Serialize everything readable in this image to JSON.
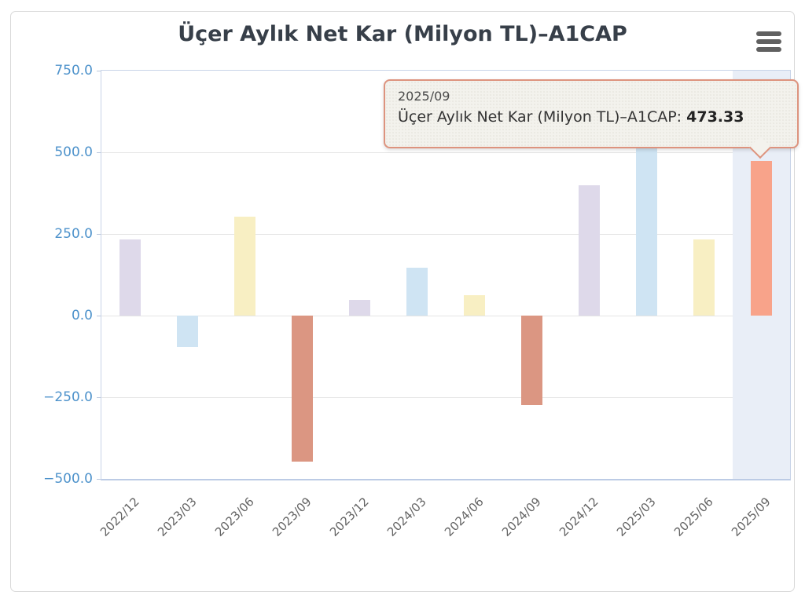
{
  "card": {
    "title": "Üçer Aylık Net Kar (Milyon TL)–A1CAP"
  },
  "tooltip": {
    "label": "2025/09",
    "series_label": "Üçer Aylık Net Kar (Milyon TL)–A1CAP:",
    "value": "473.33",
    "border_color": "#dd937e",
    "background": "#f3f2ed"
  },
  "chart_data": {
    "type": "bar",
    "title": "Üçer Aylık Net Kar (Milyon TL)–A1CAP",
    "categories": [
      "2022/12",
      "2023/03",
      "2023/06",
      "2023/09",
      "2023/12",
      "2024/03",
      "2024/06",
      "2024/09",
      "2024/12",
      "2025/03",
      "2025/06",
      "2025/09"
    ],
    "values": [
      234,
      -96,
      304,
      -447,
      47,
      146,
      63,
      -274,
      400,
      570,
      233,
      473.33
    ],
    "xlabel": "",
    "ylabel": "",
    "ylim": [
      -500,
      750
    ],
    "yticks": [
      750,
      500,
      250,
      0,
      -250,
      -500
    ],
    "ytick_labels": [
      "750.0",
      "500.0",
      "250.0",
      "0.0",
      "−250.0",
      "−500.0"
    ],
    "grid": true,
    "legend": false,
    "highlighted_category": "2025/09",
    "highlighted_value_label": "473.33",
    "bar_colors_cycle": [
      "#ded9ea",
      "#cfe4f3",
      "#f8efc3",
      "#db9682"
    ],
    "highlight_bar_color": "#f8a38a",
    "highlight_band_color": "#e9eef7",
    "axis_label_color": "#4d92cb",
    "x_label_color": "#646464",
    "gridline_color": "#e4e4e4"
  }
}
